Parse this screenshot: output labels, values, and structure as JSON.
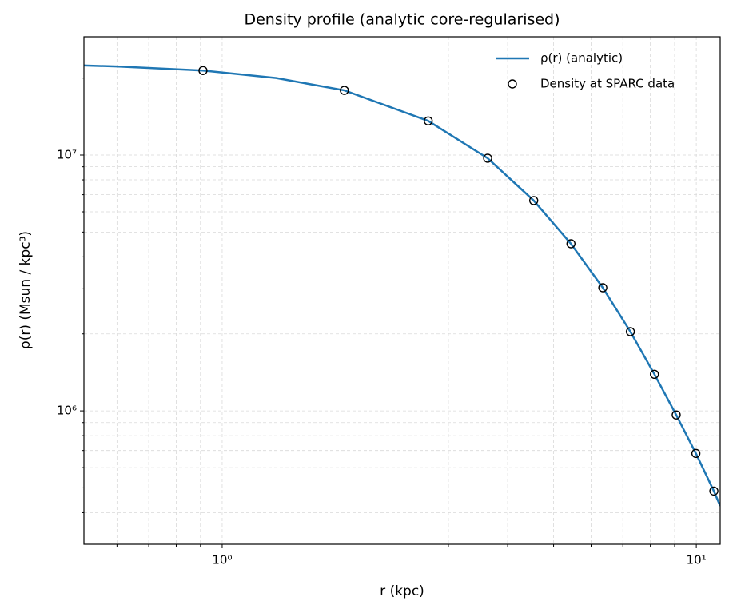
{
  "chart_data": {
    "type": "line",
    "title": "Density profile (analytic core-regularised)",
    "xlabel": "r (kpc)",
    "ylabel": "ρ(r) (Msun / kpc³)",
    "xscale": "log",
    "yscale": "log",
    "grid": true,
    "legend_loc": "upper right",
    "xlim": [
      0.511,
      11.23
    ],
    "ylim": [
      301000,
      29000000
    ],
    "xticks": [
      {
        "value": 1,
        "label": "10⁰"
      },
      {
        "value": 10,
        "label": "10¹"
      }
    ],
    "yticks": [
      {
        "value": 1000000,
        "label": "10⁶"
      },
      {
        "value": 10000000,
        "label": "10⁷"
      }
    ],
    "xminorticks": [
      0.6,
      0.7,
      0.8,
      0.9,
      2,
      3,
      4,
      5,
      6,
      7,
      8,
      9
    ],
    "yminorticks": [
      400000,
      500000,
      600000,
      700000,
      800000,
      900000,
      2000000,
      3000000,
      4000000,
      5000000,
      6000000,
      7000000,
      8000000,
      9000000,
      20000000
    ],
    "series": [
      {
        "name": "ρ(r) (analytic)",
        "color": "#1f77b4",
        "style": "line",
        "x": [
          0.511,
          0.6,
          0.911,
          1.3,
          1.81,
          2.72,
          3.63,
          4.54,
          5.44,
          6.35,
          7.26,
          8.16,
          9.07,
          9.98,
          10.89,
          11.23
        ],
        "values": [
          22400000,
          22200000,
          21400000,
          20000000,
          17900000,
          13600000,
          9720000,
          6640000,
          4500000,
          3030000,
          2040000,
          1390000,
          964000,
          682000,
          486000,
          425000
        ]
      },
      {
        "name": "Density at SPARC data",
        "color": "#000000",
        "style": "markers",
        "x": [
          0.911,
          1.81,
          2.72,
          3.63,
          4.54,
          5.44,
          6.35,
          7.26,
          8.16,
          9.07,
          9.98,
          10.89
        ],
        "values": [
          21400000,
          17900000,
          13600000,
          9720000,
          6640000,
          4500000,
          3030000,
          2040000,
          1390000,
          964000,
          682000,
          486000
        ]
      }
    ]
  }
}
